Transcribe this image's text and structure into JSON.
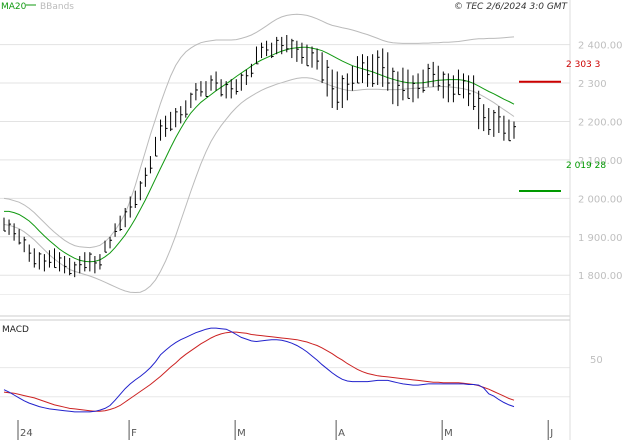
{
  "header": {
    "copyright": "© TEC 2/6/2024 3:0 GMT"
  },
  "legend": {
    "ma_label": "MA20",
    "bbands_label": "BBands",
    "ma_color": "#119911",
    "bbands_color": "#bbbbbb"
  },
  "macd_panel": {
    "label": "MACD",
    "tick_label": "50",
    "macd_color": "#2222cc",
    "signal_color": "#cc2222"
  },
  "markers": {
    "resistance": {
      "label": "2 303 3",
      "value": 2303.3,
      "color": "#cc0000"
    },
    "support": {
      "label": "2 019 28",
      "value": 2019.28,
      "color": "#009900"
    }
  },
  "chart_data": {
    "type": "line",
    "ylim": [
      1720,
      2490
    ],
    "y_ticks": [
      {
        "value": 2400,
        "label": "2 400.00"
      },
      {
        "value": 2300,
        "label": "2 300"
      },
      {
        "value": 2200,
        "label": "2 200.00"
      },
      {
        "value": 2100,
        "label": "2 100.00"
      },
      {
        "value": 2000,
        "label": "2 000.00"
      },
      {
        "value": 1900,
        "label": "1 900.00"
      },
      {
        "value": 1800,
        "label": "1 800.00"
      }
    ],
    "x_labels": [
      {
        "label": "24",
        "index": 0
      },
      {
        "label": "F",
        "index": 22
      },
      {
        "label": "M",
        "index": 43
      },
      {
        "label": "A",
        "index": 63
      },
      {
        "label": "M",
        "index": 84
      },
      {
        "label": "J",
        "index": 105
      }
    ],
    "price_high": [
      1950,
      1945,
      1935,
      1920,
      1900,
      1880,
      1870,
      1860,
      1855,
      1865,
      1870,
      1860,
      1850,
      1845,
      1835,
      1850,
      1860,
      1860,
      1850,
      1855,
      1890,
      1900,
      1935,
      1955,
      1975,
      2005,
      2020,
      2045,
      2080,
      2110,
      2160,
      2205,
      2215,
      2225,
      2235,
      2240,
      2255,
      2275,
      2300,
      2305,
      2305,
      2320,
      2330,
      2310,
      2305,
      2310,
      2310,
      2325,
      2335,
      2350,
      2395,
      2405,
      2410,
      2405,
      2420,
      2420,
      2425,
      2415,
      2410,
      2405,
      2400,
      2395,
      2390,
      2380,
      2360,
      2335,
      2330,
      2320,
      2325,
      2345,
      2370,
      2375,
      2370,
      2375,
      2385,
      2390,
      2380,
      2340,
      2330,
      2340,
      2335,
      2320,
      2325,
      2335,
      2350,
      2355,
      2345,
      2330,
      2325,
      2320,
      2335,
      2325,
      2320,
      2320,
      2280,
      2245,
      2235,
      2230,
      2240,
      2215,
      2205,
      2200
    ],
    "price_low": [
      1915,
      1905,
      1890,
      1880,
      1860,
      1835,
      1820,
      1815,
      1810,
      1820,
      1820,
      1810,
      1805,
      1800,
      1795,
      1805,
      1810,
      1810,
      1805,
      1815,
      1860,
      1870,
      1900,
      1915,
      1925,
      1950,
      1975,
      1995,
      2030,
      2065,
      2110,
      2150,
      2160,
      2175,
      2185,
      2195,
      2210,
      2235,
      2255,
      2265,
      2265,
      2280,
      2280,
      2265,
      2260,
      2260,
      2270,
      2280,
      2295,
      2315,
      2350,
      2365,
      2370,
      2365,
      2375,
      2375,
      2380,
      2365,
      2355,
      2350,
      2345,
      2340,
      2335,
      2300,
      2265,
      2235,
      2230,
      2235,
      2255,
      2280,
      2300,
      2300,
      2290,
      2290,
      2295,
      2290,
      2280,
      2245,
      2240,
      2255,
      2260,
      2250,
      2260,
      2275,
      2290,
      2290,
      2280,
      2260,
      2250,
      2250,
      2270,
      2260,
      2240,
      2230,
      2180,
      2175,
      2165,
      2160,
      2170,
      2150,
      2150,
      2155
    ],
    "ma20": [
      1966,
      1966,
      1963,
      1958,
      1950,
      1941,
      1929,
      1915,
      1902,
      1890,
      1879,
      1868,
      1859,
      1851,
      1844,
      1839,
      1836,
      1835,
      1836,
      1840,
      1848,
      1858,
      1872,
      1888,
      1905,
      1925,
      1947,
      1971,
      1996,
      2023,
      2051,
      2078,
      2105,
      2132,
      2158,
      2181,
      2203,
      2222,
      2237,
      2250,
      2260,
      2270,
      2280,
      2289,
      2298,
      2307,
      2317,
      2326,
      2335,
      2344,
      2353,
      2360,
      2366,
      2372,
      2378,
      2383,
      2387,
      2390,
      2392,
      2393,
      2393,
      2391,
      2388,
      2384,
      2378,
      2371,
      2364,
      2357,
      2351,
      2345,
      2341,
      2337,
      2333,
      2329,
      2324,
      2319,
      2314,
      2310,
      2306,
      2303,
      2301,
      2300,
      2300,
      2301,
      2303,
      2305,
      2307,
      2308,
      2309,
      2309,
      2309,
      2307,
      2304,
      2299,
      2292,
      2285,
      2278,
      2272,
      2265,
      2258,
      2252,
      2245
    ],
    "bb_upper": [
      2000,
      1998,
      1994,
      1990,
      1983,
      1974,
      1963,
      1950,
      1937,
      1924,
      1912,
      1901,
      1891,
      1883,
      1877,
      1874,
      1873,
      1872,
      1874,
      1878,
      1887,
      1900,
      1917,
      1937,
      1961,
      1994,
      2034,
      2078,
      2122,
      2166,
      2206,
      2247,
      2284,
      2318,
      2346,
      2366,
      2381,
      2391,
      2399,
      2405,
      2408,
      2410,
      2412,
      2412,
      2412,
      2412,
      2413,
      2416,
      2420,
      2425,
      2432,
      2440,
      2449,
      2458,
      2466,
      2472,
      2476,
      2478,
      2479,
      2478,
      2476,
      2472,
      2467,
      2461,
      2455,
      2450,
      2447,
      2444,
      2441,
      2438,
      2434,
      2430,
      2426,
      2421,
      2416,
      2411,
      2407,
      2405,
      2404,
      2403,
      2403,
      2403,
      2403,
      2404,
      2404,
      2405,
      2405,
      2406,
      2406,
      2407,
      2408,
      2410,
      2412,
      2414,
      2415,
      2415,
      2416,
      2416,
      2417,
      2418,
      2419,
      2420
    ],
    "bb_lower": [
      1932,
      1930,
      1926,
      1921,
      1913,
      1903,
      1892,
      1879,
      1866,
      1853,
      1842,
      1832,
      1823,
      1815,
      1810,
      1806,
      1802,
      1798,
      1793,
      1788,
      1782,
      1776,
      1770,
      1764,
      1759,
      1756,
      1755,
      1756,
      1762,
      1772,
      1788,
      1810,
      1837,
      1868,
      1903,
      1941,
      1980,
      2018,
      2055,
      2090,
      2121,
      2148,
      2170,
      2189,
      2206,
      2222,
      2236,
      2248,
      2258,
      2266,
      2274,
      2281,
      2287,
      2292,
      2297,
      2301,
      2305,
      2309,
      2312,
      2314,
      2314,
      2312,
      2308,
      2303,
      2297,
      2292,
      2288,
      2284,
      2281,
      2280,
      2281,
      2283,
      2284,
      2284,
      2284,
      2283,
      2283,
      2283,
      2283,
      2284,
      2285,
      2286,
      2287,
      2288,
      2289,
      2290,
      2291,
      2291,
      2290,
      2289,
      2287,
      2285,
      2282,
      2278,
      2272,
      2265,
      2257,
      2249,
      2240,
      2231,
      2222,
      2213
    ],
    "macd": [
      12,
      8,
      3,
      -2,
      -7,
      -11,
      -14,
      -17,
      -19,
      -21,
      -22,
      -23,
      -24,
      -25,
      -26,
      -26,
      -26,
      -26,
      -25,
      -23,
      -20,
      -15,
      -6,
      4,
      14,
      22,
      29,
      35,
      42,
      50,
      60,
      72,
      80,
      87,
      93,
      98,
      102,
      106,
      110,
      113,
      116,
      118,
      118,
      117,
      116,
      112,
      107,
      102,
      99,
      96,
      95,
      96,
      97,
      98,
      98,
      97,
      95,
      92,
      88,
      83,
      77,
      70,
      63,
      55,
      48,
      41,
      35,
      30,
      27,
      26,
      26,
      26,
      26,
      27,
      28,
      28,
      28,
      26,
      24,
      22,
      21,
      20,
      20,
      21,
      22,
      22,
      22,
      22,
      22,
      22,
      22,
      22,
      21,
      21,
      20,
      15,
      5,
      1,
      -5,
      -10,
      -14,
      -17
    ],
    "signal": [
      8,
      7,
      6,
      4,
      2,
      0,
      -2,
      -5,
      -8,
      -11,
      -14,
      -16,
      -18,
      -20,
      -21,
      -22,
      -23,
      -24,
      -25,
      -25,
      -24,
      -22,
      -19,
      -15,
      -9,
      -3,
      3,
      9,
      15,
      21,
      28,
      35,
      43,
      51,
      58,
      66,
      73,
      79,
      85,
      91,
      96,
      101,
      105,
      108,
      110,
      111,
      111,
      110,
      109,
      107,
      106,
      105,
      104,
      103,
      102,
      101,
      100,
      99,
      98,
      96,
      94,
      91,
      88,
      84,
      79,
      74,
      68,
      63,
      57,
      52,
      47,
      43,
      40,
      38,
      36,
      35,
      34,
      33,
      32,
      31,
      30,
      29,
      28,
      27,
      26,
      25,
      25,
      24,
      24,
      24,
      24,
      23,
      22,
      21,
      19,
      16,
      13,
      9,
      5,
      1,
      -3,
      -6
    ]
  }
}
